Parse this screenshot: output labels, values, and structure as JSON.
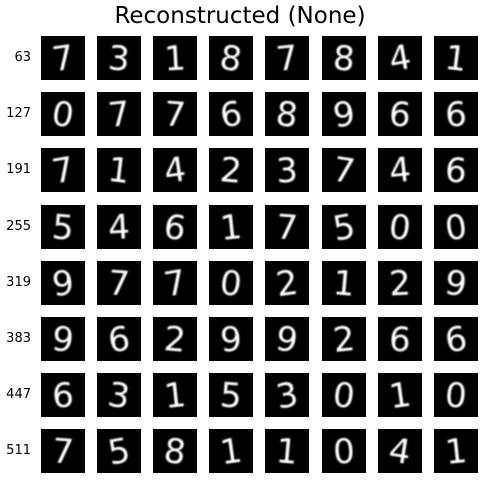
{
  "figure": {
    "title": "Reconstructed (None)"
  },
  "rows": [
    {
      "label": "63",
      "digits": [
        "7",
        "3",
        "1",
        "8",
        "7",
        "8",
        "4",
        "1"
      ]
    },
    {
      "label": "127",
      "digits": [
        "0",
        "7",
        "7",
        "6",
        "8",
        "9",
        "6",
        "6"
      ]
    },
    {
      "label": "191",
      "digits": [
        "7",
        "1",
        "4",
        "2",
        "3",
        "7",
        "4",
        "6"
      ]
    },
    {
      "label": "255",
      "digits": [
        "5",
        "4",
        "6",
        "1",
        "7",
        "5",
        "0",
        "0"
      ]
    },
    {
      "label": "319",
      "digits": [
        "9",
        "7",
        "7",
        "0",
        "2",
        "1",
        "2",
        "9"
      ]
    },
    {
      "label": "383",
      "digits": [
        "9",
        "6",
        "2",
        "9",
        "9",
        "2",
        "6",
        "6"
      ]
    },
    {
      "label": "447",
      "digits": [
        "6",
        "3",
        "1",
        "5",
        "3",
        "0",
        "1",
        "0"
      ]
    },
    {
      "label": "511",
      "digits": [
        "7",
        "5",
        "8",
        "1",
        "1",
        "0",
        "4",
        "1"
      ]
    }
  ],
  "colors": {
    "tile_background": "#000000",
    "digit_stroke": "#ffffff",
    "page_background": "#ffffff"
  }
}
